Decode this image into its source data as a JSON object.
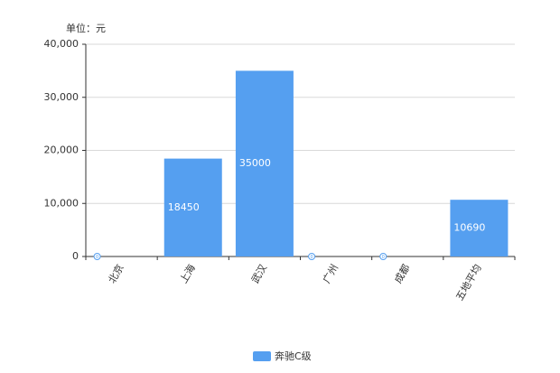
{
  "chart_data": {
    "type": "bar",
    "unit_label": "单位：元",
    "categories": [
      "北京",
      "上海",
      "武汉",
      "广州",
      "成都",
      "五地平均"
    ],
    "series": [
      {
        "name": "奔驰C级",
        "color": "#559ff0",
        "values": [
          0,
          18450,
          35000,
          0,
          0,
          10690
        ]
      }
    ],
    "ylim": [
      0,
      40000
    ],
    "yticks": [
      0,
      {
        "value": 10000,
        "label": "10,000"
      },
      {
        "value": 20000,
        "label": "20,000"
      },
      {
        "value": 30000,
        "label": "30,000"
      },
      {
        "value": 40000,
        "label": "40,000"
      }
    ],
    "grid": true,
    "legend": "bottom"
  }
}
